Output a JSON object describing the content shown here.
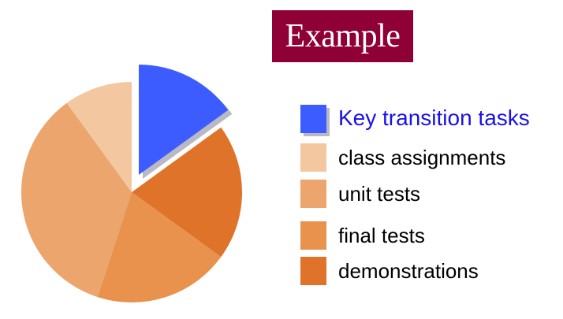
{
  "header": {
    "title": "Example"
  },
  "chart_data": {
    "type": "pie",
    "title": "Example",
    "slices": [
      {
        "label": "Key transition tasks",
        "value": 15,
        "color": "#3d5cff",
        "exploded": true
      },
      {
        "label": "demonstrations",
        "value": 20,
        "color": "#e0732a"
      },
      {
        "label": "final tests",
        "value": 20,
        "color": "#e8924d"
      },
      {
        "label": "unit tests",
        "value": 35,
        "color": "#eca56c"
      },
      {
        "label": "class assignments",
        "value": 10,
        "color": "#f3c8a1"
      }
    ],
    "legend": {
      "placement": "right",
      "items": [
        {
          "label": "Key transition tasks",
          "color": "#3d5cff",
          "text_color": "#1a10e8"
        },
        {
          "label": "class assignments",
          "color": "#f3c8a1"
        },
        {
          "label": "unit tests",
          "color": "#eca56c"
        },
        {
          "label": "final tests",
          "color": "#e8924d"
        },
        {
          "label": "demonstrations",
          "color": "#e0732a"
        }
      ]
    }
  }
}
